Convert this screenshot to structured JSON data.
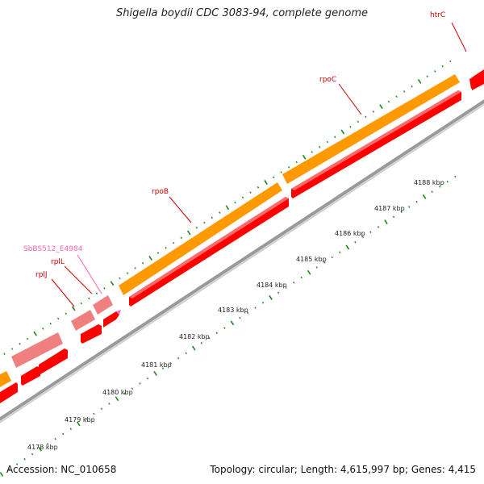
{
  "title": "Shigella boydii CDC 3083-94, complete genome",
  "footer": {
    "accession": "Accession: NC_010658",
    "summary": "Topology: circular; Length: 4,615,997 bp; Genes: 4,415"
  },
  "colors": {
    "backbone": "#888888",
    "ticks": "#1a8a1a",
    "gene": "#ff0000",
    "gene_light": "#f08080",
    "cds_orange": "#ff9900",
    "label_red": "#cc0000",
    "label_pink": "#ff66aa"
  },
  "kbp_labels": [
    {
      "value": 4178,
      "text": "4178 kbp"
    },
    {
      "value": 4179,
      "text": "4179 kbp"
    },
    {
      "value": 4180,
      "text": "4180 kbp"
    },
    {
      "value": 4181,
      "text": "4181 kbp"
    },
    {
      "value": 4182,
      "text": "4182 kbp"
    },
    {
      "value": 4183,
      "text": "4183 kbp"
    },
    {
      "value": 4184,
      "text": "4184 kbp"
    },
    {
      "value": 4185,
      "text": "4185 kbp"
    },
    {
      "value": 4186,
      "text": "4186 kbp"
    },
    {
      "value": 4187,
      "text": "4187 kbp"
    },
    {
      "value": 4188,
      "text": "4188 kbp"
    }
  ],
  "gene_labels": [
    {
      "name": "htrC",
      "color": "label_red"
    },
    {
      "name": "rpoC",
      "color": "label_red"
    },
    {
      "name": "rpoB",
      "color": "label_red"
    },
    {
      "name": "SbBS512_E4984",
      "color": "label_pink"
    },
    {
      "name": "rplL",
      "color": "label_red"
    },
    {
      "name": "rplJ",
      "color": "label_red"
    }
  ]
}
